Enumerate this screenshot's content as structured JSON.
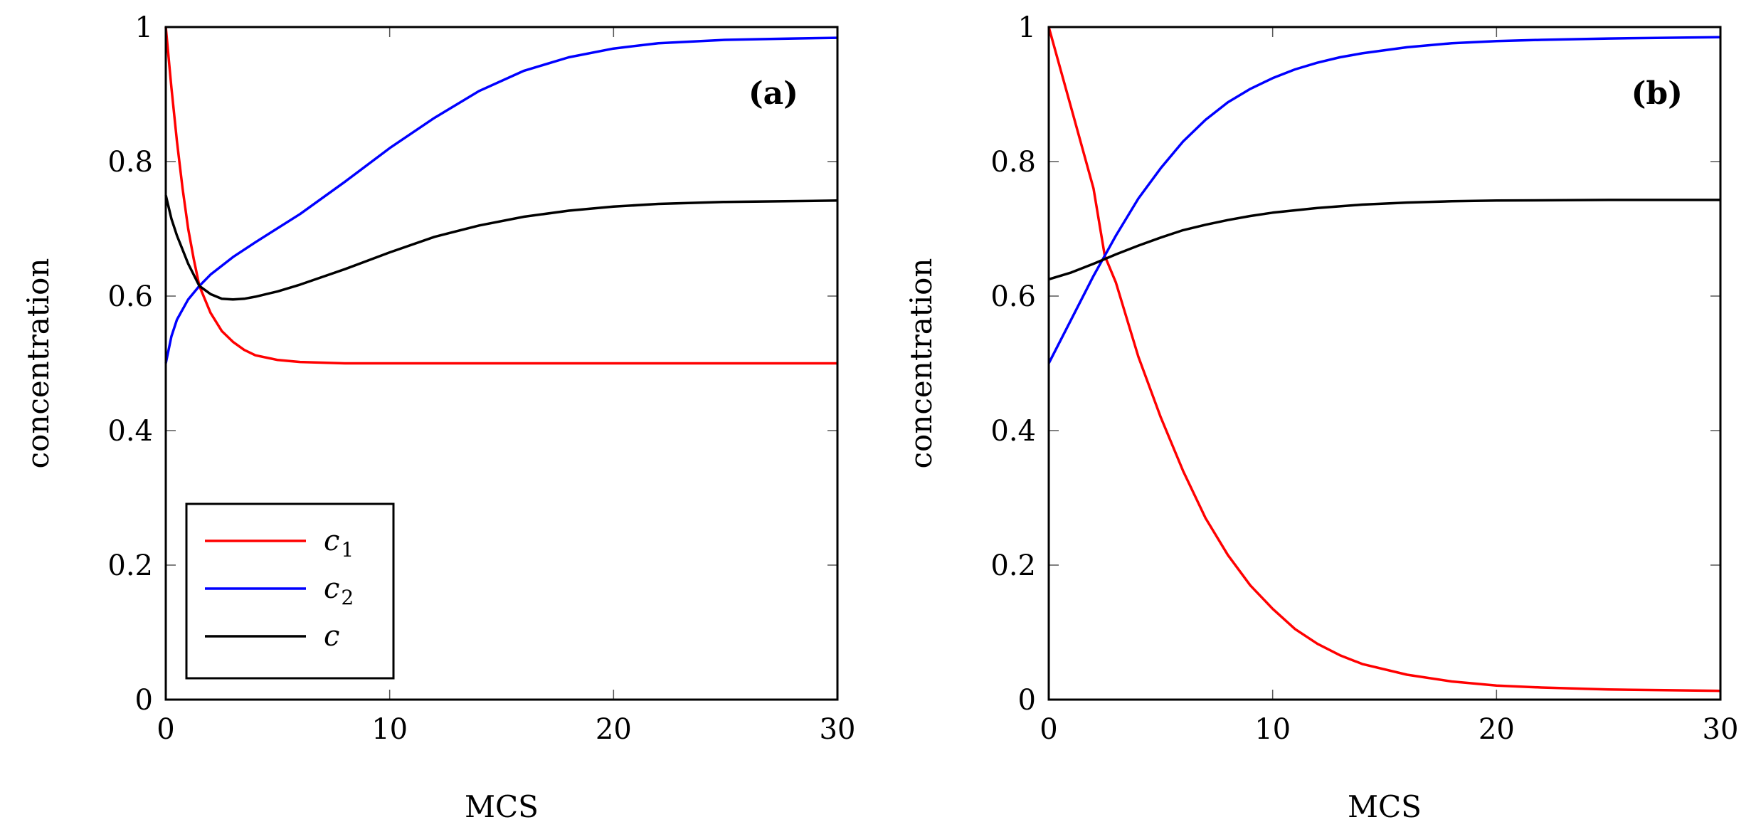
{
  "chart_data": [
    {
      "type": "line",
      "panel_tag": "(a)",
      "xlabel": "MCS",
      "ylabel": "concentration",
      "xlim": [
        0,
        30
      ],
      "ylim": [
        0,
        1
      ],
      "xticks": [
        "0",
        "10",
        "20",
        "30"
      ],
      "yticks": [
        "0",
        "0.2",
        "0.4",
        "0.6",
        "0.8",
        "1"
      ],
      "legend_position": "bottom-left",
      "series": [
        {
          "name": "c1",
          "base": "c",
          "sub": "1",
          "color": "#ff0000",
          "x": [
            0,
            0.25,
            0.5,
            0.75,
            1,
            1.25,
            1.5,
            2,
            2.5,
            3,
            3.5,
            4,
            5,
            6,
            8,
            10,
            15,
            20,
            25,
            30
          ],
          "y": [
            1.0,
            0.91,
            0.83,
            0.76,
            0.7,
            0.655,
            0.615,
            0.575,
            0.548,
            0.532,
            0.52,
            0.512,
            0.505,
            0.502,
            0.5,
            0.5,
            0.5,
            0.5,
            0.5,
            0.5
          ]
        },
        {
          "name": "c2",
          "base": "c",
          "sub": "2",
          "color": "#0000ff",
          "x": [
            0,
            0.25,
            0.5,
            1,
            1.5,
            2,
            3,
            4,
            6,
            8,
            10,
            12,
            14,
            16,
            18,
            20,
            22,
            25,
            28,
            30
          ],
          "y": [
            0.5,
            0.54,
            0.565,
            0.595,
            0.615,
            0.632,
            0.658,
            0.68,
            0.722,
            0.77,
            0.82,
            0.865,
            0.905,
            0.935,
            0.955,
            0.968,
            0.976,
            0.981,
            0.983,
            0.984
          ]
        },
        {
          "name": "c",
          "base": "c",
          "sub": "",
          "color": "#000000",
          "x": [
            0,
            0.25,
            0.5,
            1,
            1.5,
            2,
            2.5,
            3,
            3.5,
            4,
            5,
            6,
            8,
            10,
            12,
            14,
            16,
            18,
            20,
            22,
            25,
            30
          ],
          "y": [
            0.75,
            0.715,
            0.69,
            0.648,
            0.615,
            0.603,
            0.596,
            0.595,
            0.596,
            0.599,
            0.607,
            0.617,
            0.64,
            0.665,
            0.688,
            0.705,
            0.718,
            0.727,
            0.733,
            0.737,
            0.74,
            0.742
          ]
        }
      ]
    },
    {
      "type": "line",
      "panel_tag": "(b)",
      "xlabel": "MCS",
      "ylabel": "concentration",
      "xlim": [
        0,
        30
      ],
      "ylim": [
        0,
        1
      ],
      "xticks": [
        "0",
        "10",
        "20",
        "30"
      ],
      "yticks": [
        "0",
        "0.2",
        "0.4",
        "0.6",
        "0.8",
        "1"
      ],
      "series": [
        {
          "name": "c1",
          "color": "#ff0000",
          "x": [
            0,
            1,
            2,
            2.5,
            3,
            4,
            5,
            6,
            7,
            8,
            9,
            10,
            11,
            12,
            13,
            14,
            16,
            18,
            20,
            22,
            25,
            30
          ],
          "y": [
            1.0,
            0.88,
            0.76,
            0.66,
            0.62,
            0.51,
            0.42,
            0.34,
            0.27,
            0.215,
            0.17,
            0.135,
            0.105,
            0.083,
            0.066,
            0.053,
            0.037,
            0.027,
            0.021,
            0.018,
            0.015,
            0.013
          ]
        },
        {
          "name": "c2",
          "color": "#0000ff",
          "x": [
            0,
            1,
            2,
            2.5,
            3,
            4,
            5,
            6,
            7,
            8,
            9,
            10,
            11,
            12,
            13,
            14,
            16,
            18,
            20,
            22,
            25,
            30
          ],
          "y": [
            0.5,
            0.565,
            0.63,
            0.66,
            0.69,
            0.745,
            0.79,
            0.83,
            0.862,
            0.888,
            0.908,
            0.924,
            0.937,
            0.947,
            0.955,
            0.961,
            0.97,
            0.976,
            0.979,
            0.981,
            0.983,
            0.985
          ]
        },
        {
          "name": "c",
          "color": "#000000",
          "x": [
            0,
            1,
            2,
            2.5,
            3,
            4,
            5,
            6,
            7,
            8,
            9,
            10,
            12,
            14,
            16,
            18,
            20,
            25,
            30
          ],
          "y": [
            0.625,
            0.635,
            0.648,
            0.655,
            0.662,
            0.675,
            0.687,
            0.698,
            0.706,
            0.713,
            0.719,
            0.724,
            0.731,
            0.736,
            0.739,
            0.741,
            0.742,
            0.743,
            0.743
          ]
        }
      ]
    }
  ]
}
